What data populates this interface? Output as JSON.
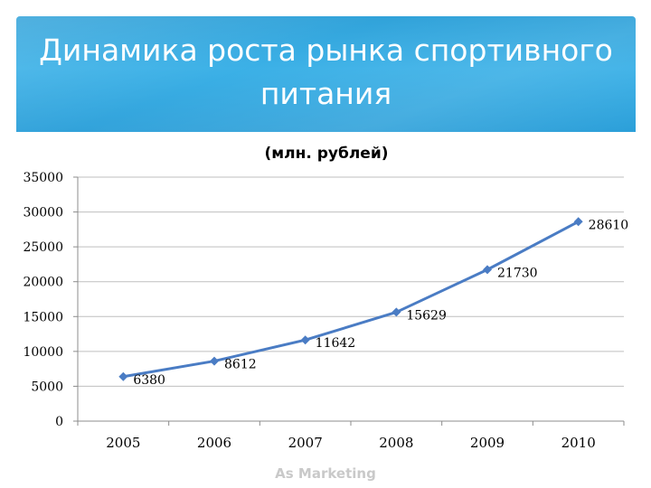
{
  "slide": {
    "title": "Динамика роста рынка спортивного\nпитания",
    "footer": "As Marketing",
    "banner_color": "#2fa6df",
    "series_color": "#4a7cc4"
  },
  "chart_data": {
    "type": "line",
    "title": "(млн. рублей)",
    "xlabel": "",
    "ylabel": "",
    "categories": [
      "2005",
      "2006",
      "2007",
      "2008",
      "2009",
      "2010"
    ],
    "series": [
      {
        "values": [
          6380,
          8612,
          11642,
          15629,
          21730,
          28610
        ]
      }
    ],
    "data_labels": [
      "6380",
      "8612",
      "11642",
      "15629",
      "21730",
      "28610"
    ],
    "y_ticks": [
      "0",
      "5000",
      "10000",
      "15000",
      "20000",
      "25000",
      "30000",
      "35000"
    ],
    "ylim": [
      0,
      35000
    ],
    "grid": true,
    "legend": "none"
  }
}
